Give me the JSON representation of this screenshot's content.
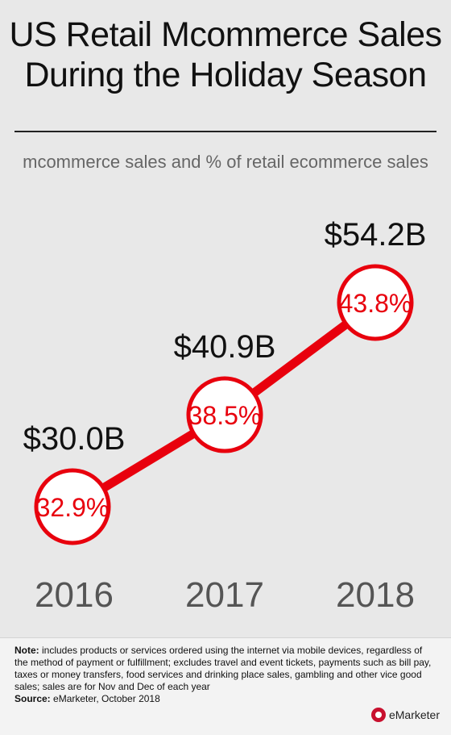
{
  "header": {
    "title_line1": "US Retail Mcommerce Sales",
    "title_line2": "During the Holiday Season",
    "subtitle": "mcommerce sales and % of retail ecommerce sales"
  },
  "chart_data": {
    "type": "line",
    "categories": [
      "2016",
      "2017",
      "2018"
    ],
    "series": [
      {
        "values": [
          30.0,
          40.9,
          54.2
        ]
      },
      {
        "values": [
          32.9,
          38.5,
          43.8
        ]
      }
    ],
    "sales_labels": [
      "$30.0B",
      "$40.9B",
      "$54.2B"
    ],
    "share_labels": [
      "32.9%",
      "38.5%",
      "43.8%"
    ],
    "colors": {
      "line": "#e8000d",
      "circle_fill": "#ffffff",
      "share_text": "#e8000d",
      "sales_text": "#111111",
      "year_text": "#555555"
    }
  },
  "footer": {
    "note_label": "Note:",
    "note_text": " includes products or services ordered using the internet via mobile devices, regardless of the method of payment or fulfillment; excludes travel and event tickets, payments such as bill pay, taxes or money transfers, food services and drinking place sales, gambling and other vice good sales; sales are for Nov and Dec of each year",
    "source_label": "Source:",
    "source_text": " eMarketer, October 2018",
    "brand": "eMarketer"
  }
}
